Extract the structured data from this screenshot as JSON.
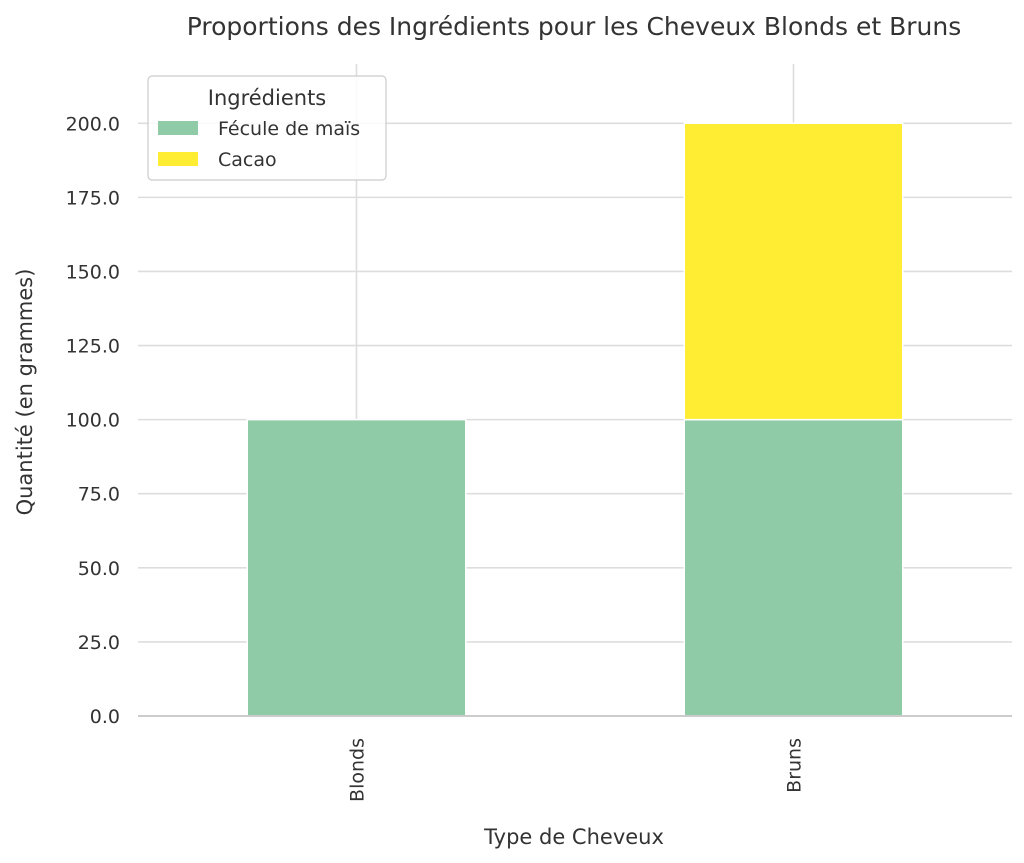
{
  "chart_data": {
    "type": "bar",
    "stacked": true,
    "title": "Proportions des Ingrédients pour les Cheveux Blonds et Bruns",
    "xlabel": "Type de Cheveux",
    "ylabel": "Quantité (en grammes)",
    "categories": [
      "Blonds",
      "Bruns"
    ],
    "series": [
      {
        "name": "Fécule de maïs",
        "values": [
          100,
          100
        ],
        "color": "#8ecba6"
      },
      {
        "name": "Cacao",
        "values": [
          0,
          100
        ],
        "color": "#ffed33"
      }
    ],
    "ylim": [
      0,
      220
    ],
    "yticks": [
      0,
      25,
      50,
      75,
      100,
      125,
      150,
      175,
      200
    ],
    "ytick_labels": [
      "0.0",
      "25.0",
      "50.0",
      "75.0",
      "100.0",
      "125.0",
      "150.0",
      "175.0",
      "200.0"
    ],
    "grid": true,
    "legend": {
      "title": "Ingrédients",
      "placement": "top-left"
    }
  }
}
